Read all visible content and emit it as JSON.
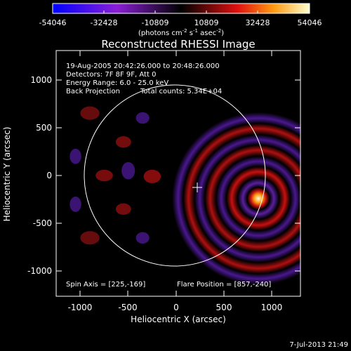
{
  "colorbar": {
    "ticks": [
      "-54046",
      "-32428",
      "-10809",
      "10809",
      "32428",
      "54046"
    ],
    "units_prefix": "(photons cm",
    "units_exp1": "-2",
    "units_mid": " s",
    "units_exp2": "-1",
    "units_mid2": " asec",
    "units_exp3": "-2",
    "units_suffix": ")",
    "colors": [
      "#0000ff",
      "#8a1fd6",
      "#000000",
      "#e01010",
      "#ff9a10",
      "#ffffd0"
    ]
  },
  "title": "Reconstructed RHESSI Image",
  "info": {
    "line1": "19-Aug-2005 20:42:26.000 to 20:48:26.000",
    "line2": "Detectors: 7F 8F 9F, Att 0",
    "line3": "Energy Range: 6.0 - 25.0 keV",
    "line4a": "Back Projection",
    "line4b": "Total counts: 5.34E+04",
    "spin_axis": "Spin Axis = [225,-169]",
    "flare_position": "Flare Position = [857,-240]"
  },
  "axes": {
    "xlabel": "Heliocentric X (arcsec)",
    "ylabel": "Heliocentric Y (arcsec)",
    "xticks": [
      "-1000",
      "-500",
      "0",
      "500",
      "1000"
    ],
    "yticks": [
      "1000",
      "500",
      "0",
      "-500",
      "-1000"
    ]
  },
  "timestamp": "7-Jul-2013 21:49"
}
